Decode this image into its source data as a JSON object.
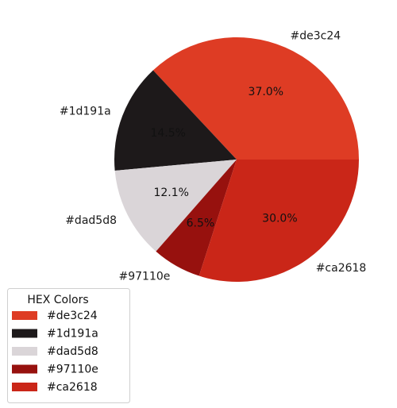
{
  "chart_data": {
    "type": "pie",
    "title": "",
    "slices": [
      {
        "label": "#de3c24",
        "value": 37.0,
        "pct_text": "37.0%",
        "color": "#de3c24"
      },
      {
        "label": "#1d191a",
        "value": 14.5,
        "pct_text": "14.5%",
        "color": "#1d191a"
      },
      {
        "label": "#dad5d8",
        "value": 12.1,
        "pct_text": "12.1%",
        "color": "#dad5d8"
      },
      {
        "label": "#97110e",
        "value": 6.5,
        "pct_text": "6.5%",
        "color": "#97110e"
      },
      {
        "label": "#ca2618",
        "value": 30.0,
        "pct_text": "30.0%",
        "color": "#ca2618"
      }
    ],
    "start_angle_deg": 0,
    "direction": "counterclockwise",
    "legend": {
      "title": "HEX Colors",
      "placement": "bottom-left",
      "entries": [
        "#de3c24",
        "#1d191a",
        "#dad5d8",
        "#97110e",
        "#ca2618"
      ]
    }
  }
}
